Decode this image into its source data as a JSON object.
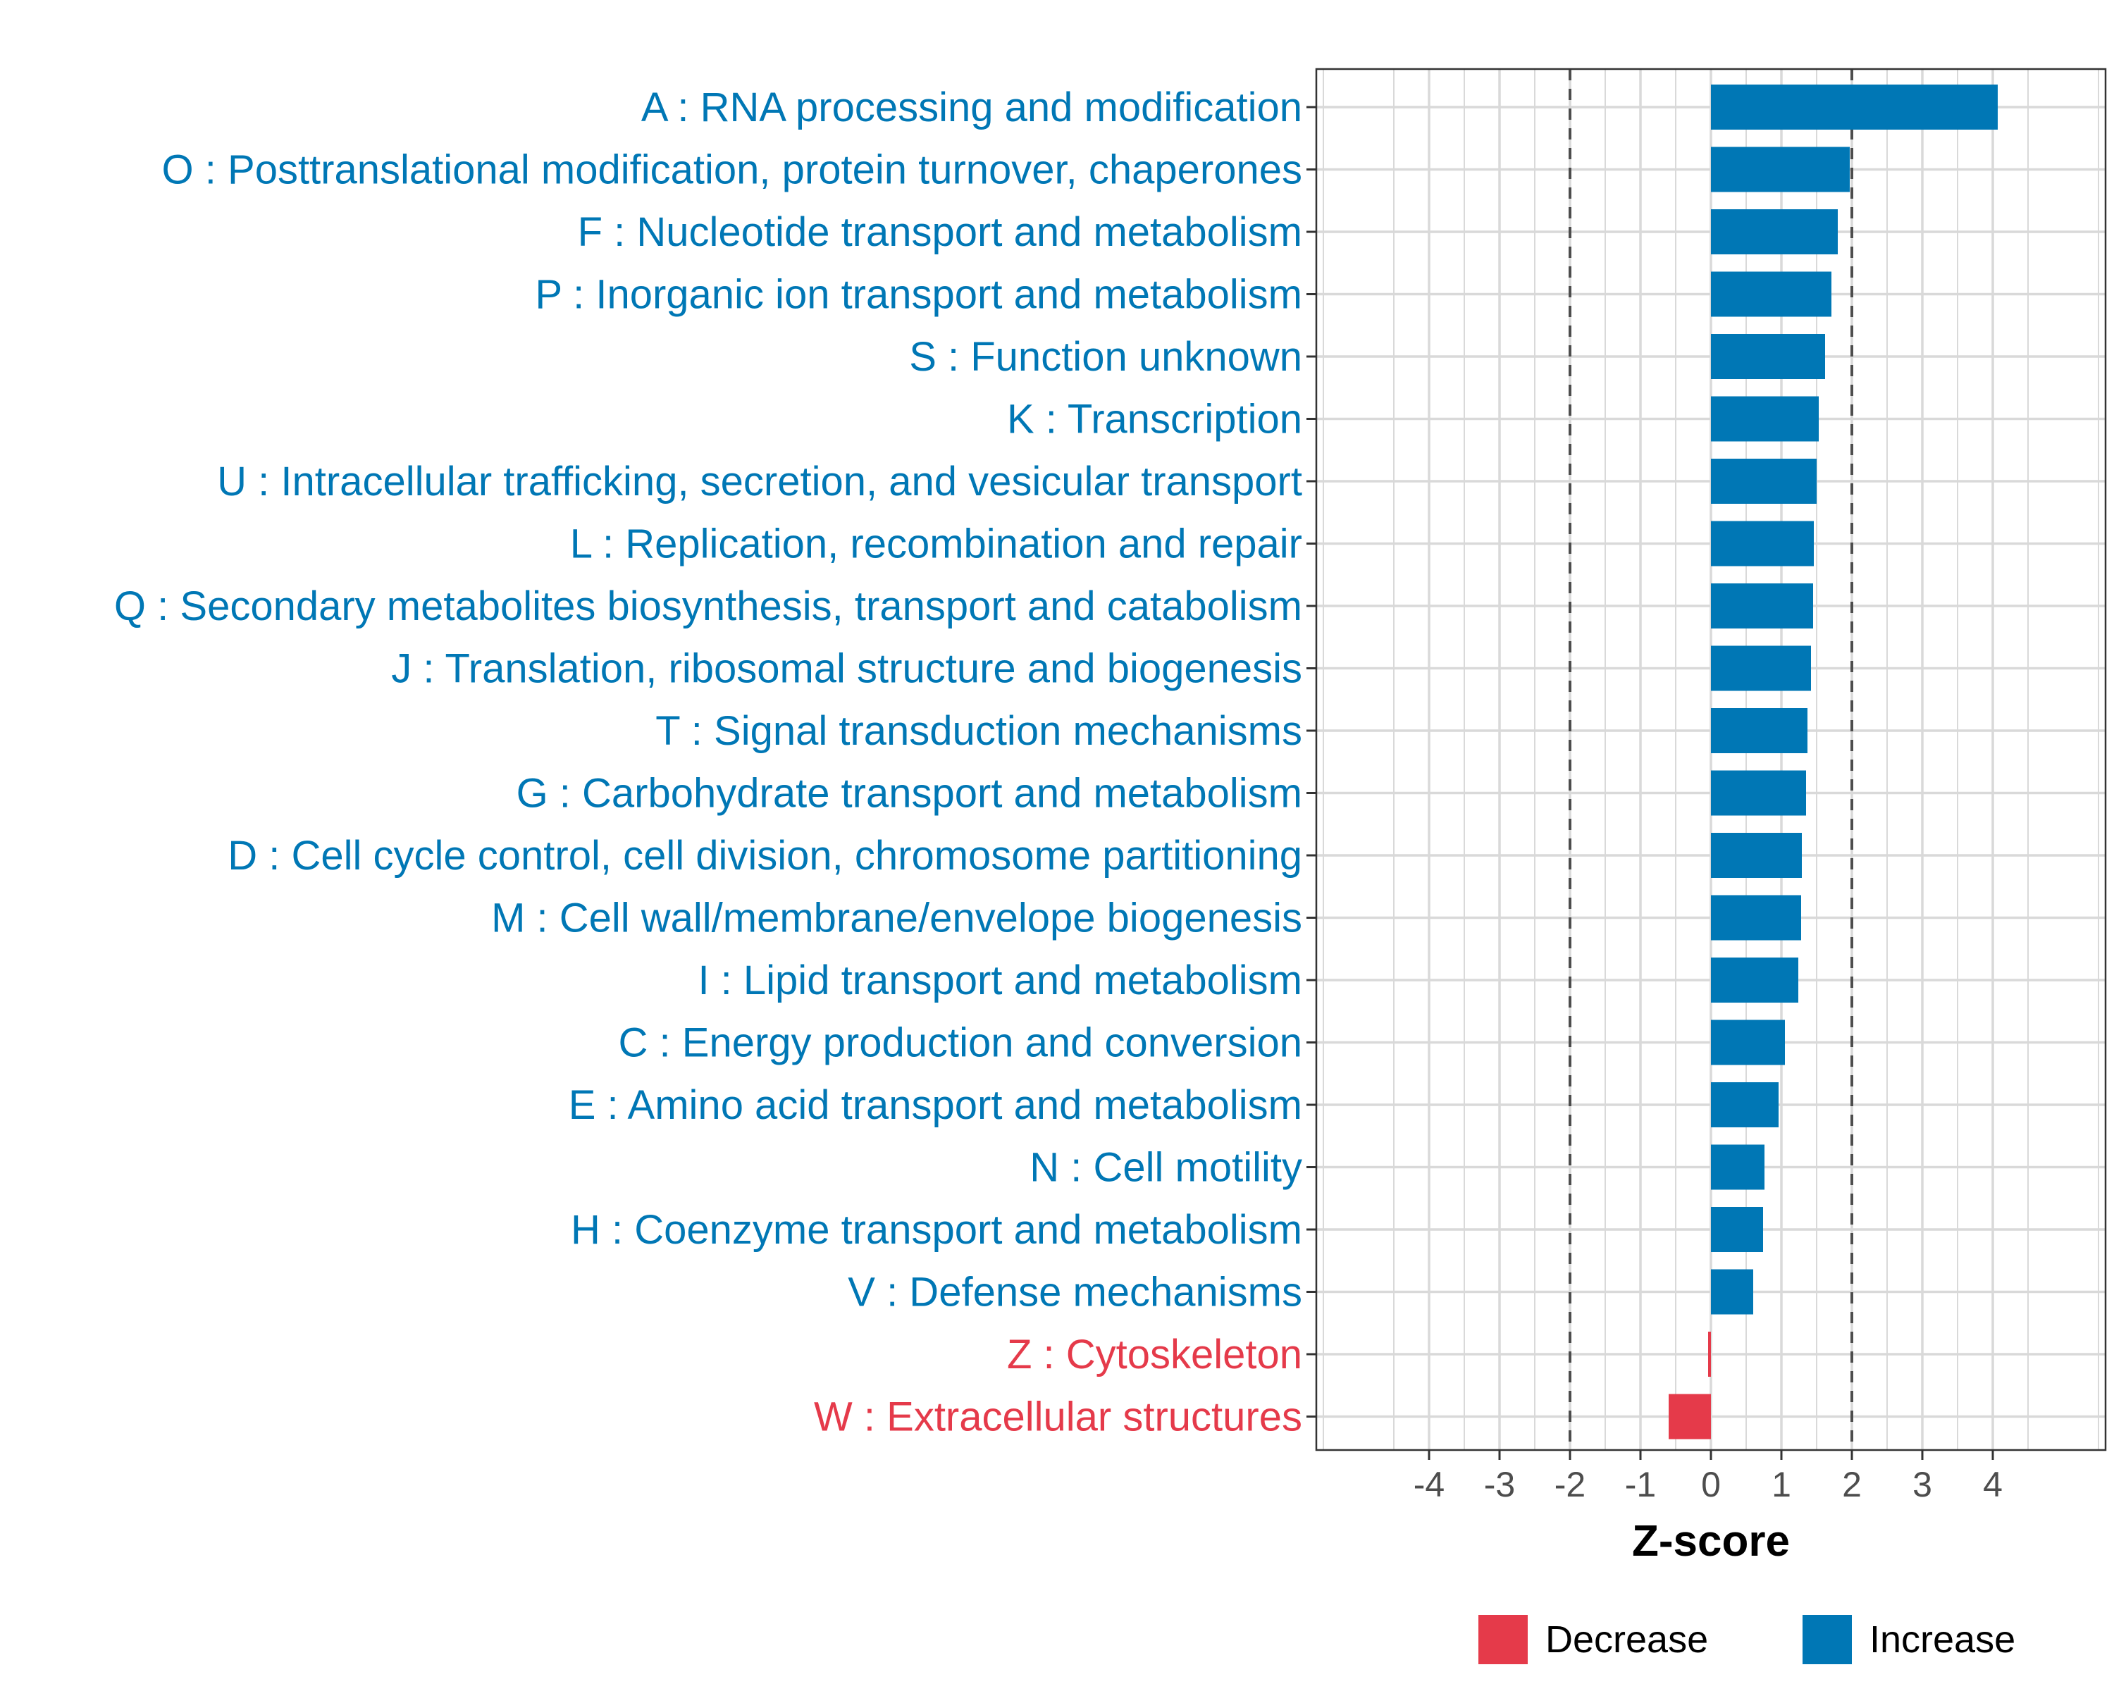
{
  "colors": {
    "increase": "#0077B5",
    "decrease": "#E53A4A",
    "grid": "#d9d9d9",
    "panel_border": "#333333",
    "threshold_line": "#4d4d4d"
  },
  "chart_data": {
    "type": "bar",
    "orientation": "horizontal",
    "title": "",
    "xlabel": "Z-score",
    "ylabel": "",
    "xlim": [
      -5.6,
      5.6
    ],
    "xticks": [
      -4,
      -3,
      -2,
      -1,
      0,
      1,
      2,
      3,
      4
    ],
    "xtick_labels": [
      "-4",
      "-3",
      "-2",
      "-1",
      "0",
      "1",
      "2",
      "3",
      "4"
    ],
    "threshold_lines": [
      -2,
      2
    ],
    "grid": true,
    "legend_position": "bottom",
    "categories": [
      "A : RNA processing and modification",
      "O : Posttranslational modification, protein turnover, chaperones",
      "F : Nucleotide transport and metabolism",
      "P : Inorganic ion transport and metabolism",
      "S : Function unknown",
      "K : Transcription",
      "U : Intracellular trafficking, secretion, and vesicular transport",
      "L : Replication, recombination and repair",
      "Q : Secondary metabolites biosynthesis, transport and catabolism",
      "J : Translation, ribosomal structure and biogenesis",
      "T : Signal transduction mechanisms",
      "G : Carbohydrate transport and metabolism",
      "D : Cell cycle control, cell division, chromosome partitioning",
      "M : Cell wall/membrane/envelope biogenesis",
      "I : Lipid transport and metabolism",
      "C : Energy production and conversion",
      "E : Amino acid transport and metabolism",
      "N : Cell motility",
      "H : Coenzyme transport and metabolism",
      "V : Defense mechanisms",
      "Z : Cytoskeleton",
      "W : Extracellular structures"
    ],
    "values": [
      4.07,
      1.97,
      1.8,
      1.71,
      1.62,
      1.53,
      1.5,
      1.46,
      1.45,
      1.42,
      1.37,
      1.35,
      1.29,
      1.28,
      1.24,
      1.05,
      0.96,
      0.76,
      0.74,
      0.6,
      -0.04,
      -0.6
    ],
    "groups": [
      "Increase",
      "Increase",
      "Increase",
      "Increase",
      "Increase",
      "Increase",
      "Increase",
      "Increase",
      "Increase",
      "Increase",
      "Increase",
      "Increase",
      "Increase",
      "Increase",
      "Increase",
      "Increase",
      "Increase",
      "Increase",
      "Increase",
      "Increase",
      "Decrease",
      "Decrease"
    ],
    "legend": [
      {
        "name": "Decrease",
        "color": "#E53A4A"
      },
      {
        "name": "Increase",
        "color": "#0077B5"
      }
    ]
  }
}
